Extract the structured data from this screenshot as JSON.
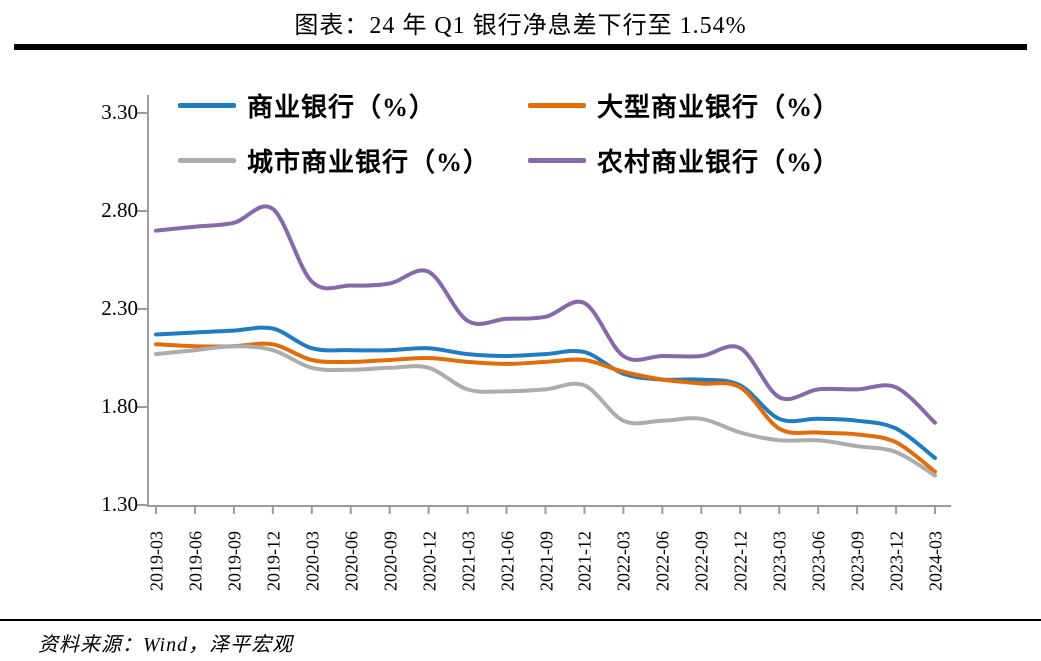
{
  "page": {
    "title": "图表：24 年 Q1 银行净息差下行至 1.54%",
    "source": "资料来源：Wind，泽平宏观"
  },
  "chart_data": {
    "type": "line",
    "title": "图表：24 年 Q1 银行净息差下行至 1.54%",
    "x": [
      "2019-03",
      "2019-06",
      "2019-09",
      "2019-12",
      "2020-03",
      "2020-06",
      "2020-09",
      "2020-12",
      "2021-03",
      "2021-06",
      "2021-09",
      "2021-12",
      "2022-03",
      "2022-06",
      "2022-09",
      "2022-12",
      "2023-03",
      "2023-06",
      "2023-09",
      "2023-12",
      "2024-03"
    ],
    "series": [
      {
        "name": "商业银行（%）",
        "color": "#1f7cc1",
        "values": [
          2.17,
          2.18,
          2.19,
          2.2,
          2.1,
          2.09,
          2.09,
          2.1,
          2.07,
          2.06,
          2.07,
          2.08,
          1.97,
          1.94,
          1.94,
          1.91,
          1.74,
          1.74,
          1.73,
          1.69,
          1.54
        ]
      },
      {
        "name": "大型商业银行（%）",
        "color": "#e26b0a",
        "values": [
          2.12,
          2.11,
          2.11,
          2.12,
          2.04,
          2.03,
          2.04,
          2.05,
          2.03,
          2.02,
          2.03,
          2.04,
          1.98,
          1.94,
          1.92,
          1.9,
          1.69,
          1.67,
          1.66,
          1.62,
          1.47
        ]
      },
      {
        "name": "城市商业银行（%）",
        "color": "#acacac",
        "values": [
          2.07,
          2.09,
          2.11,
          2.09,
          2.0,
          1.99,
          2.0,
          2.0,
          1.89,
          1.88,
          1.89,
          1.91,
          1.73,
          1.73,
          1.74,
          1.67,
          1.63,
          1.63,
          1.6,
          1.57,
          1.45
        ]
      },
      {
        "name": "农村商业银行（%）",
        "color": "#8768a9",
        "values": [
          2.7,
          2.72,
          2.74,
          2.81,
          2.44,
          2.42,
          2.43,
          2.49,
          2.24,
          2.25,
          2.26,
          2.33,
          2.06,
          2.06,
          2.06,
          2.1,
          1.85,
          1.89,
          1.89,
          1.9,
          1.72
        ]
      }
    ],
    "ylabel": "",
    "xlabel": "",
    "ylim": [
      1.3,
      3.3
    ],
    "y_ticks": [
      "3.30",
      "2.80",
      "2.30",
      "1.80",
      "1.30"
    ],
    "grid": false,
    "legend_position": "top-inside-two-rows",
    "axis_color": "#9b9b9b"
  }
}
